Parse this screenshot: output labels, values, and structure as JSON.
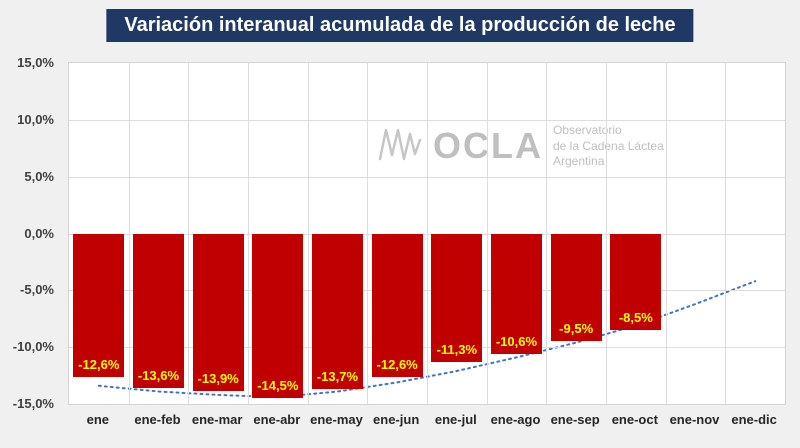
{
  "title": "Variación interanual acumulada de la producción de leche",
  "watermark": {
    "name": "OCLA",
    "subtitle_line1": "Observatorio",
    "subtitle_line2": "de la Cadena Láctea",
    "subtitle_line3": "Argentina"
  },
  "colors": {
    "bar": "#C00000",
    "bar_label": "#FFFF00",
    "trend": "#4472C4",
    "title_bg": "#1F3864",
    "title_text": "#FFFFFF"
  },
  "chart_data": {
    "type": "bar",
    "title": "Variación interanual acumulada de la producción de leche",
    "xlabel": "",
    "ylabel": "",
    "grid": true,
    "ylim": [
      -15,
      15
    ],
    "y_ticks": [
      "15,0%",
      "10,0%",
      "5,0%",
      "0,0%",
      "-5,0%",
      "-10,0%",
      "-15,0%"
    ],
    "y_tick_values": [
      15,
      10,
      5,
      0,
      -5,
      -10,
      -15
    ],
    "categories": [
      "ene",
      "ene-feb",
      "ene-mar",
      "ene-abr",
      "ene-may",
      "ene-jun",
      "ene-jul",
      "ene-ago",
      "ene-sep",
      "ene-oct",
      "ene-nov",
      "ene-dic"
    ],
    "values": [
      -12.6,
      -13.6,
      -13.9,
      -14.5,
      -13.7,
      -12.6,
      -11.3,
      -10.6,
      -9.5,
      -8.5,
      null,
      null
    ],
    "labels": [
      "-12,6%",
      "-13,6%",
      "-13,9%",
      "-14,5%",
      "-13,7%",
      "-12,6%",
      "-11,3%",
      "-10,6%",
      "-9,5%",
      "-8,5%",
      "",
      ""
    ],
    "trend_line": {
      "style": "dotted",
      "values": [
        -13.4,
        -13.9,
        -14.2,
        -14.4,
        -13.9,
        -13.1,
        -12.1,
        -10.9,
        -9.6,
        -8.1,
        -6.2,
        -4.2
      ]
    }
  }
}
